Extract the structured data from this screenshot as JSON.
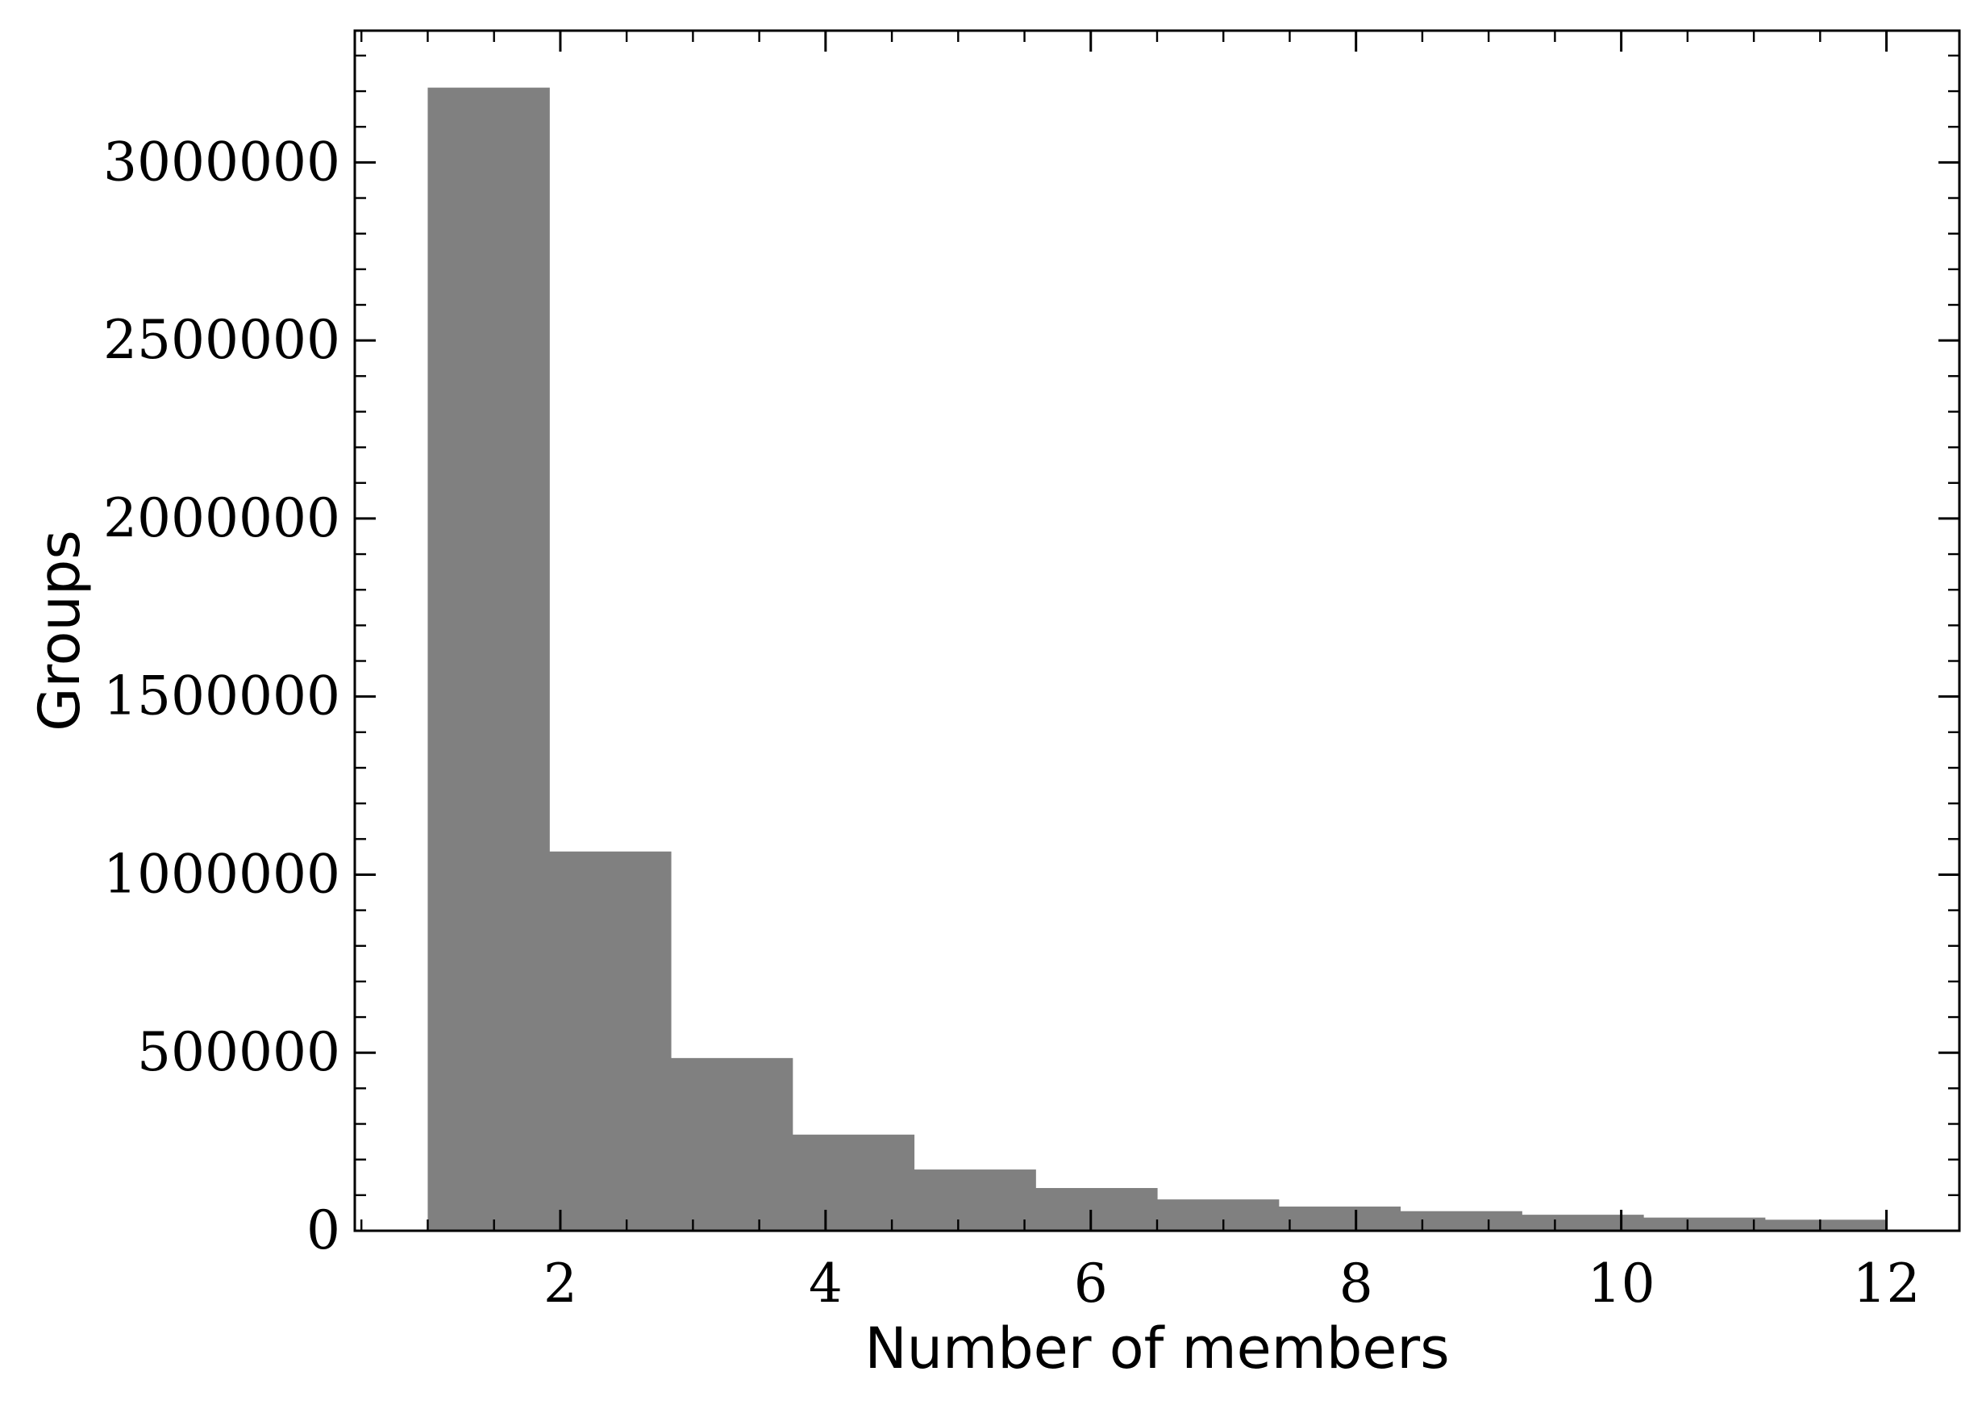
{
  "chart_data": {
    "type": "bar",
    "subtype": "histogram",
    "title": "",
    "xlabel": "Number of members",
    "ylabel": "Groups",
    "xlim": [
      0.45,
      12.55
    ],
    "ylim": [
      0,
      3370000
    ],
    "x_ticks": [
      2,
      4,
      6,
      8,
      10,
      12
    ],
    "x_tick_labels": [
      "2",
      "4",
      "6",
      "8",
      "10",
      "12"
    ],
    "y_ticks": [
      0,
      500000,
      1000000,
      1500000,
      2000000,
      2500000,
      3000000
    ],
    "y_tick_labels": [
      "0",
      "500000",
      "1000000",
      "1500000",
      "2000000",
      "2500000",
      "3000000"
    ],
    "bin_edges": [
      1.0,
      1.9167,
      2.8333,
      3.75,
      4.6667,
      5.5833,
      6.5,
      7.4167,
      8.3333,
      9.25,
      10.1667,
      11.0833,
      12.0
    ],
    "values": [
      3210000,
      1065000,
      485000,
      270000,
      172000,
      120000,
      88000,
      68000,
      55000,
      45000,
      37000,
      31000
    ],
    "bar_color": "#808080",
    "grid": false,
    "legend": "none"
  }
}
